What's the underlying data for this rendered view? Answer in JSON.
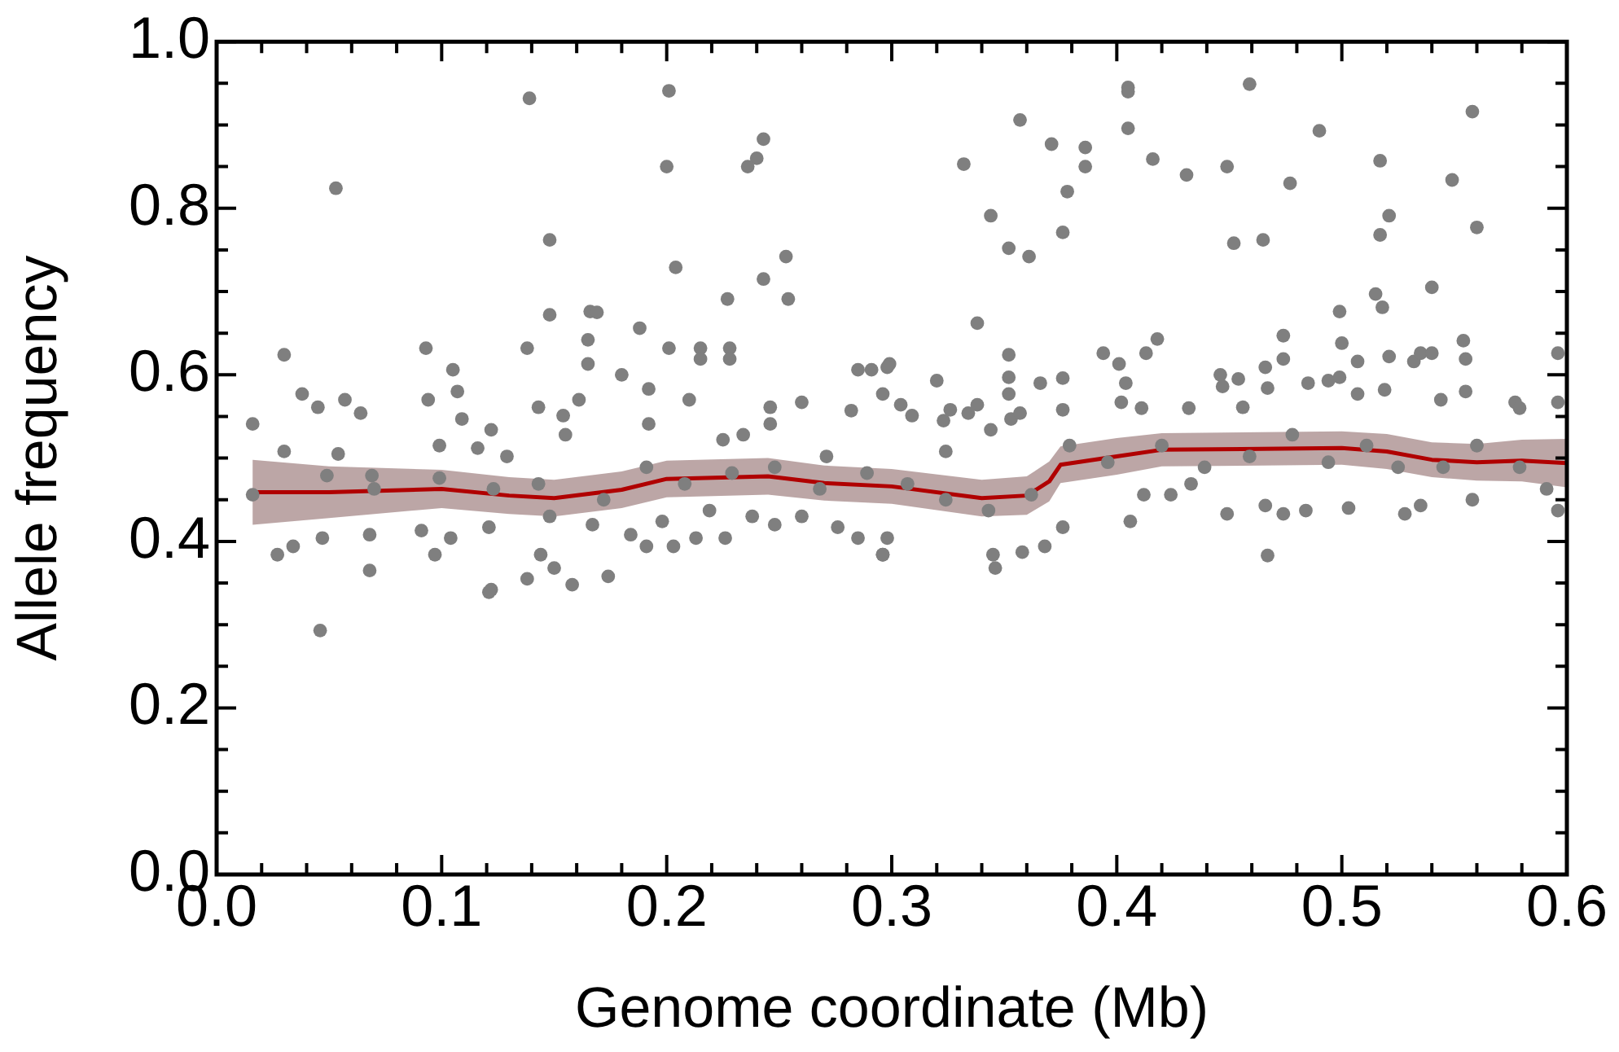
{
  "chart_data": {
    "type": "scatter",
    "xlabel": "Genome coordinate (Mb)",
    "ylabel": "Allele frequency",
    "xlim": [
      0,
      0.6
    ],
    "ylim": [
      0,
      1
    ],
    "xticks": [
      {
        "value": 0,
        "label": "0.0"
      },
      {
        "value": 0.02,
        "label": null
      },
      {
        "value": 0.04,
        "label": null
      },
      {
        "value": 0.06,
        "label": null
      },
      {
        "value": 0.08,
        "label": null
      },
      {
        "value": 0.1,
        "label": "0.1"
      },
      {
        "value": 0.12,
        "label": null
      },
      {
        "value": 0.14,
        "label": null
      },
      {
        "value": 0.16,
        "label": null
      },
      {
        "value": 0.18,
        "label": null
      },
      {
        "value": 0.2,
        "label": "0.2"
      },
      {
        "value": 0.22,
        "label": null
      },
      {
        "value": 0.24,
        "label": null
      },
      {
        "value": 0.26,
        "label": null
      },
      {
        "value": 0.28,
        "label": null
      },
      {
        "value": 0.3,
        "label": "0.3"
      },
      {
        "value": 0.32,
        "label": null
      },
      {
        "value": 0.34,
        "label": null
      },
      {
        "value": 0.36,
        "label": null
      },
      {
        "value": 0.38,
        "label": null
      },
      {
        "value": 0.4,
        "label": "0.4"
      },
      {
        "value": 0.42,
        "label": null
      },
      {
        "value": 0.44,
        "label": null
      },
      {
        "value": 0.46,
        "label": null
      },
      {
        "value": 0.48,
        "label": null
      },
      {
        "value": 0.5,
        "label": "0.5"
      },
      {
        "value": 0.52,
        "label": null
      },
      {
        "value": 0.54,
        "label": null
      },
      {
        "value": 0.56,
        "label": null
      },
      {
        "value": 0.58,
        "label": null
      },
      {
        "value": 0.6,
        "label": "0.6"
      }
    ],
    "yticks": [
      {
        "value": 0,
        "label": "0.0"
      },
      {
        "value": 0.05,
        "label": null
      },
      {
        "value": 0.1,
        "label": null
      },
      {
        "value": 0.15,
        "label": null
      },
      {
        "value": 0.2,
        "label": "0.2"
      },
      {
        "value": 0.25,
        "label": null
      },
      {
        "value": 0.3,
        "label": null
      },
      {
        "value": 0.35,
        "label": null
      },
      {
        "value": 0.4,
        "label": "0.4"
      },
      {
        "value": 0.45,
        "label": null
      },
      {
        "value": 0.5,
        "label": null
      },
      {
        "value": 0.55,
        "label": null
      },
      {
        "value": 0.6,
        "label": "0.6"
      },
      {
        "value": 0.65,
        "label": null
      },
      {
        "value": 0.7,
        "label": null
      },
      {
        "value": 0.75,
        "label": null
      },
      {
        "value": 0.8,
        "label": "0.8"
      },
      {
        "value": 0.85,
        "label": null
      },
      {
        "value": 0.9,
        "label": null
      },
      {
        "value": 0.95,
        "label": null
      },
      {
        "value": 1,
        "label": "1.0"
      }
    ],
    "grid": false,
    "legend": false,
    "marker": "circle",
    "series": [
      {
        "type": "scatter",
        "color": "#7f7f7f",
        "x": [
          0.053,
          0.046,
          0.139,
          0.148,
          0.201,
          0.2,
          0.204,
          0.243,
          0.24,
          0.236,
          0.253,
          0.122,
          0.357,
          0.405,
          0.405,
          0.405,
          0.459,
          0.558,
          0.49,
          0.332,
          0.371,
          0.386,
          0.386,
          0.378,
          0.344,
          0.352,
          0.361,
          0.376,
          0.416,
          0.431,
          0.449,
          0.452,
          0.465,
          0.477,
          0.517,
          0.521,
          0.517,
          0.549,
          0.56,
          0.54,
          0.243,
          0.227,
          0.254,
          0.148,
          0.166,
          0.016,
          0.016,
          0.03,
          0.03,
          0.027,
          0.034,
          0.038,
          0.045,
          0.047,
          0.054,
          0.057,
          0.064,
          0.068,
          0.069,
          0.068,
          0.093,
          0.094,
          0.097,
          0.091,
          0.099,
          0.105,
          0.107,
          0.109,
          0.104,
          0.116,
          0.121,
          0.121,
          0.122,
          0.129,
          0.138,
          0.138,
          0.143,
          0.144,
          0.148,
          0.15,
          0.154,
          0.155,
          0.158,
          0.161,
          0.165,
          0.165,
          0.167,
          0.169,
          0.174,
          0.18,
          0.184,
          0.188,
          0.191,
          0.192,
          0.192,
          0.198,
          0.201,
          0.203,
          0.21,
          0.213,
          0.215,
          0.215,
          0.219,
          0.225,
          0.226,
          0.228,
          0.228,
          0.234,
          0.238,
          0.246,
          0.246,
          0.248,
          0.26,
          0.26,
          0.271,
          0.276,
          0.282,
          0.285,
          0.291,
          0.285,
          0.296,
          0.299,
          0.296,
          0.049,
          0.07,
          0.099,
          0.123,
          0.143,
          0.172,
          0.191,
          0.208,
          0.229,
          0.248,
          0.268,
          0.289,
          0.298,
          0.304,
          0.309,
          0.298,
          0.296,
          0.32,
          0.323,
          0.326,
          0.324,
          0.334,
          0.338,
          0.338,
          0.344,
          0.346,
          0.345,
          0.352,
          0.352,
          0.352,
          0.353,
          0.358,
          0.357,
          0.366,
          0.368,
          0.376,
          0.376,
          0.376,
          0.394,
          0.401,
          0.402,
          0.404,
          0.406,
          0.413,
          0.418,
          0.411,
          0.412,
          0.424,
          0.432,
          0.433,
          0.446,
          0.447,
          0.449,
          0.454,
          0.456,
          0.466,
          0.467,
          0.466,
          0.467,
          0.474,
          0.474,
          0.474,
          0.485,
          0.484,
          0.494,
          0.499,
          0.5,
          0.499,
          0.503,
          0.507,
          0.507,
          0.515,
          0.518,
          0.519,
          0.521,
          0.528,
          0.532,
          0.535,
          0.54,
          0.535,
          0.544,
          0.554,
          0.555,
          0.555,
          0.558,
          0.577,
          0.579,
          0.591,
          0.596,
          0.596,
          0.596,
          0.307,
          0.324,
          0.343,
          0.362,
          0.379,
          0.396,
          0.42,
          0.439,
          0.459,
          0.478,
          0.494,
          0.511,
          0.525,
          0.545,
          0.56,
          0.579
        ],
        "values": [
          0.824,
          0.293,
          0.932,
          0.762,
          0.941,
          0.85,
          0.729,
          0.883,
          0.86,
          0.85,
          0.742,
          0.342,
          0.906,
          0.945,
          0.94,
          0.896,
          0.949,
          0.916,
          0.893,
          0.853,
          0.877,
          0.873,
          0.85,
          0.82,
          0.791,
          0.752,
          0.742,
          0.771,
          0.859,
          0.84,
          0.85,
          0.758,
          0.762,
          0.83,
          0.857,
          0.791,
          0.768,
          0.834,
          0.777,
          0.705,
          0.715,
          0.691,
          0.691,
          0.672,
          0.676,
          0.541,
          0.456,
          0.624,
          0.508,
          0.384,
          0.394,
          0.577,
          0.561,
          0.404,
          0.505,
          0.57,
          0.554,
          0.365,
          0.479,
          0.408,
          0.632,
          0.57,
          0.384,
          0.413,
          0.515,
          0.606,
          0.58,
          0.547,
          0.404,
          0.512,
          0.339,
          0.417,
          0.534,
          0.502,
          0.632,
          0.355,
          0.561,
          0.384,
          0.43,
          0.368,
          0.551,
          0.528,
          0.348,
          0.57,
          0.642,
          0.613,
          0.42,
          0.675,
          0.358,
          0.6,
          0.408,
          0.656,
          0.394,
          0.583,
          0.541,
          0.424,
          0.632,
          0.394,
          0.57,
          0.404,
          0.632,
          0.619,
          0.437,
          0.522,
          0.404,
          0.632,
          0.619,
          0.528,
          0.43,
          0.561,
          0.541,
          0.42,
          0.567,
          0.43,
          0.502,
          0.417,
          0.557,
          0.606,
          0.606,
          0.404,
          0.384,
          0.613,
          0.577,
          0.479,
          0.463,
          0.476,
          0.463,
          0.469,
          0.45,
          0.489,
          0.469,
          0.482,
          0.489,
          0.463,
          0.482,
          0.609,
          0.564,
          0.551,
          0.404,
          0.384,
          0.593,
          0.545,
          0.558,
          0.508,
          0.554,
          0.662,
          0.564,
          0.534,
          0.368,
          0.384,
          0.624,
          0.597,
          0.577,
          0.547,
          0.387,
          0.554,
          0.59,
          0.394,
          0.596,
          0.558,
          0.417,
          0.626,
          0.613,
          0.567,
          0.59,
          0.424,
          0.626,
          0.643,
          0.56,
          0.456,
          0.456,
          0.56,
          0.469,
          0.6,
          0.586,
          0.433,
          0.595,
          0.561,
          0.609,
          0.584,
          0.443,
          0.383,
          0.647,
          0.619,
          0.433,
          0.59,
          0.437,
          0.593,
          0.676,
          0.638,
          0.597,
          0.44,
          0.577,
          0.616,
          0.697,
          0.681,
          0.582,
          0.622,
          0.433,
          0.616,
          0.626,
          0.626,
          0.443,
          0.57,
          0.641,
          0.619,
          0.58,
          0.45,
          0.567,
          0.56,
          0.463,
          0.626,
          0.437,
          0.567,
          0.469,
          0.45,
          0.437,
          0.456,
          0.515,
          0.495,
          0.515,
          0.489,
          0.502,
          0.528,
          0.495,
          0.515,
          0.489,
          0.489,
          0.515,
          0.489
        ]
      },
      {
        "type": "line",
        "color": "#b00000",
        "marker": "none",
        "line_style": "solid",
        "x": [
          0.016,
          0.05,
          0.1,
          0.13,
          0.15,
          0.18,
          0.2,
          0.245,
          0.27,
          0.3,
          0.34,
          0.36,
          0.37,
          0.375,
          0.4,
          0.42,
          0.5,
          0.52,
          0.54,
          0.56,
          0.58,
          0.6
        ],
        "values": [
          0.459,
          0.459,
          0.463,
          0.455,
          0.452,
          0.462,
          0.475,
          0.478,
          0.47,
          0.466,
          0.452,
          0.455,
          0.472,
          0.492,
          0.502,
          0.51,
          0.512,
          0.508,
          0.498,
          0.495,
          0.497,
          0.494
        ],
        "lower": [
          0.42,
          0.428,
          0.44,
          0.433,
          0.43,
          0.44,
          0.453,
          0.456,
          0.449,
          0.445,
          0.43,
          0.432,
          0.448,
          0.47,
          0.48,
          0.49,
          0.492,
          0.487,
          0.477,
          0.473,
          0.472,
          0.465
        ],
        "upper": [
          0.498,
          0.49,
          0.486,
          0.477,
          0.474,
          0.484,
          0.497,
          0.5,
          0.491,
          0.487,
          0.474,
          0.478,
          0.496,
          0.514,
          0.524,
          0.53,
          0.532,
          0.529,
          0.519,
          0.517,
          0.522,
          0.523
        ]
      }
    ]
  }
}
